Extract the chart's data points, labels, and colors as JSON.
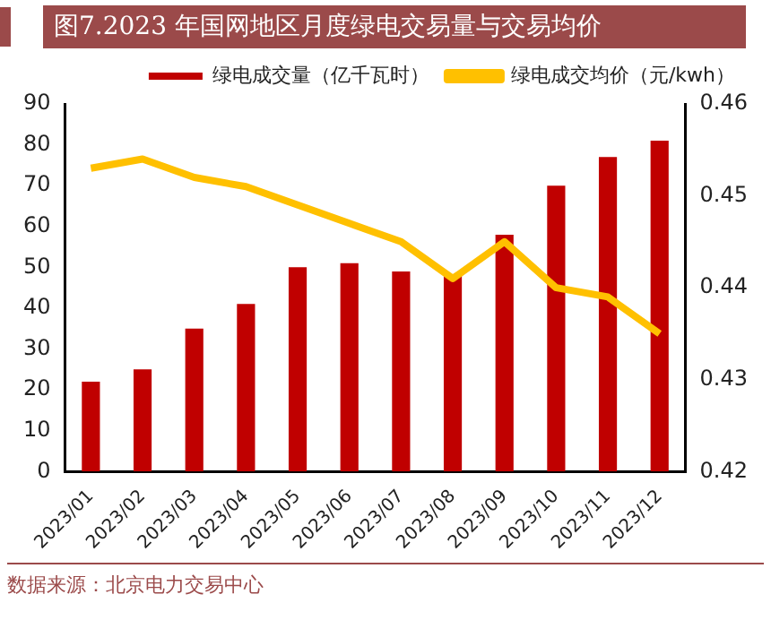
{
  "chart_data": {
    "type": "bar",
    "title": "图7.2023 年国网地区月度绿电交易量与交易均价",
    "categories": [
      "2023/01",
      "2023/02",
      "2023/03",
      "2023/04",
      "2023/05",
      "2023/06",
      "2023/07",
      "2023/08",
      "2023/09",
      "2023/10",
      "2023/11",
      "2023/12"
    ],
    "series": [
      {
        "name": "绿电成交量（亿千瓦时）",
        "color": "#c00000",
        "values": [
          22,
          25,
          35,
          41,
          50,
          51,
          49,
          48,
          58,
          70,
          77,
          81
        ]
      },
      {
        "name": "绿电成交均价（元/kwh）",
        "type": "line",
        "axis": "y2",
        "color": "#ffc000",
        "values": [
          0.453,
          0.454,
          0.452,
          0.451,
          0.449,
          0.447,
          0.445,
          0.441,
          0.445,
          0.44,
          0.439,
          0.435
        ]
      }
    ],
    "ylim": [
      0,
      90
    ],
    "yticks": [
      0,
      10,
      20,
      30,
      40,
      50,
      60,
      70,
      80,
      90
    ],
    "y2lim": [
      0.42,
      0.46
    ],
    "y2ticks": [
      0.42,
      0.43,
      0.44,
      0.45,
      0.46
    ],
    "legend": "top",
    "grid": false,
    "marker": "none",
    "annotations": [
      "数据来源：北京电力交易中心"
    ]
  }
}
